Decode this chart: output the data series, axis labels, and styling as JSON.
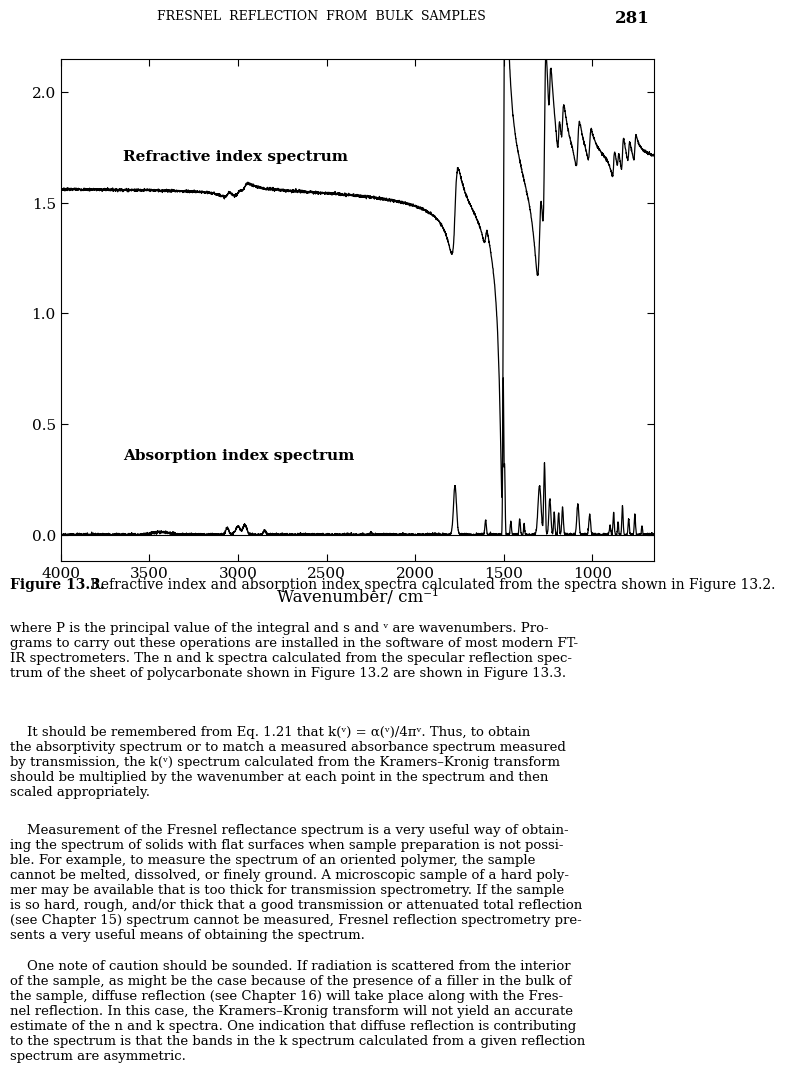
{
  "title_header": "FRESNEL  REFLECTION  FROM  BULK  SAMPLES",
  "page_number": "281",
  "xlabel": "Wavenumber/ cm⁻¹",
  "n_label": "Refractive index spectrum",
  "k_label": "Absorption index spectrum",
  "xmin": 4000,
  "xmax": 650,
  "ymin": -0.12,
  "ymax": 2.15,
  "yticks": [
    0.0,
    0.5,
    1.0,
    1.5,
    2.0
  ],
  "xticks": [
    4000,
    3500,
    3000,
    2500,
    2000,
    1500,
    1000
  ],
  "figure_caption_bold": "Figure 13.3.",
  "figure_caption_rest": " Refractive index and absorption index spectra calculated from the spectra shown in Figure 13.2.",
  "line_color": "#000000",
  "background_color": "#ffffff",
  "n_baseline": 1.585
}
